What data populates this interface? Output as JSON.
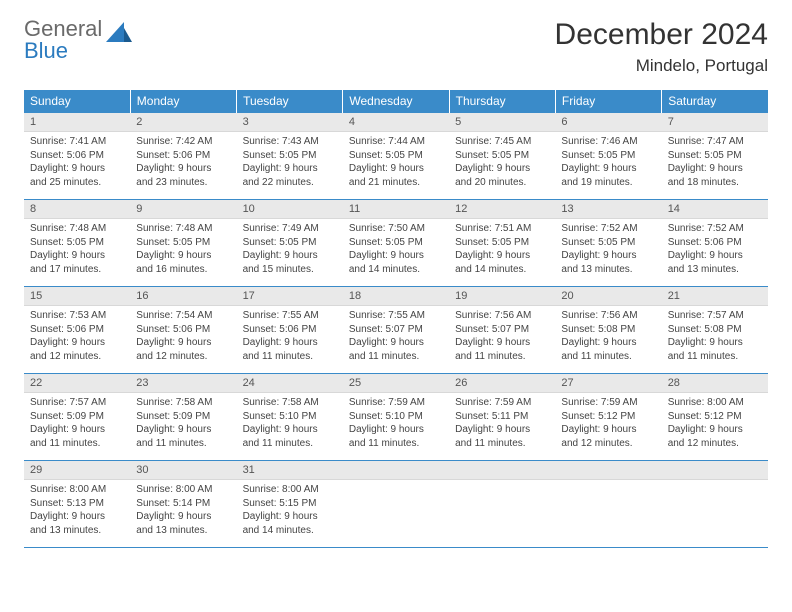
{
  "logo": {
    "line1": "General",
    "line2": "Blue"
  },
  "header": {
    "month_title": "December 2024",
    "location": "Mindelo, Portugal"
  },
  "colors": {
    "header_bg": "#3a8bc9",
    "header_text": "#ffffff",
    "daynum_bg": "#e9e9e9",
    "rule": "#3a8bc9",
    "logo_gray": "#6a6a6a",
    "logo_blue": "#2b7bbf"
  },
  "days_of_week": [
    "Sunday",
    "Monday",
    "Tuesday",
    "Wednesday",
    "Thursday",
    "Friday",
    "Saturday"
  ],
  "weeks": [
    [
      {
        "n": "1",
        "sunrise": "Sunrise: 7:41 AM",
        "sunset": "Sunset: 5:06 PM",
        "day1": "Daylight: 9 hours",
        "day2": "and 25 minutes."
      },
      {
        "n": "2",
        "sunrise": "Sunrise: 7:42 AM",
        "sunset": "Sunset: 5:06 PM",
        "day1": "Daylight: 9 hours",
        "day2": "and 23 minutes."
      },
      {
        "n": "3",
        "sunrise": "Sunrise: 7:43 AM",
        "sunset": "Sunset: 5:05 PM",
        "day1": "Daylight: 9 hours",
        "day2": "and 22 minutes."
      },
      {
        "n": "4",
        "sunrise": "Sunrise: 7:44 AM",
        "sunset": "Sunset: 5:05 PM",
        "day1": "Daylight: 9 hours",
        "day2": "and 21 minutes."
      },
      {
        "n": "5",
        "sunrise": "Sunrise: 7:45 AM",
        "sunset": "Sunset: 5:05 PM",
        "day1": "Daylight: 9 hours",
        "day2": "and 20 minutes."
      },
      {
        "n": "6",
        "sunrise": "Sunrise: 7:46 AM",
        "sunset": "Sunset: 5:05 PM",
        "day1": "Daylight: 9 hours",
        "day2": "and 19 minutes."
      },
      {
        "n": "7",
        "sunrise": "Sunrise: 7:47 AM",
        "sunset": "Sunset: 5:05 PM",
        "day1": "Daylight: 9 hours",
        "day2": "and 18 minutes."
      }
    ],
    [
      {
        "n": "8",
        "sunrise": "Sunrise: 7:48 AM",
        "sunset": "Sunset: 5:05 PM",
        "day1": "Daylight: 9 hours",
        "day2": "and 17 minutes."
      },
      {
        "n": "9",
        "sunrise": "Sunrise: 7:48 AM",
        "sunset": "Sunset: 5:05 PM",
        "day1": "Daylight: 9 hours",
        "day2": "and 16 minutes."
      },
      {
        "n": "10",
        "sunrise": "Sunrise: 7:49 AM",
        "sunset": "Sunset: 5:05 PM",
        "day1": "Daylight: 9 hours",
        "day2": "and 15 minutes."
      },
      {
        "n": "11",
        "sunrise": "Sunrise: 7:50 AM",
        "sunset": "Sunset: 5:05 PM",
        "day1": "Daylight: 9 hours",
        "day2": "and 14 minutes."
      },
      {
        "n": "12",
        "sunrise": "Sunrise: 7:51 AM",
        "sunset": "Sunset: 5:05 PM",
        "day1": "Daylight: 9 hours",
        "day2": "and 14 minutes."
      },
      {
        "n": "13",
        "sunrise": "Sunrise: 7:52 AM",
        "sunset": "Sunset: 5:05 PM",
        "day1": "Daylight: 9 hours",
        "day2": "and 13 minutes."
      },
      {
        "n": "14",
        "sunrise": "Sunrise: 7:52 AM",
        "sunset": "Sunset: 5:06 PM",
        "day1": "Daylight: 9 hours",
        "day2": "and 13 minutes."
      }
    ],
    [
      {
        "n": "15",
        "sunrise": "Sunrise: 7:53 AM",
        "sunset": "Sunset: 5:06 PM",
        "day1": "Daylight: 9 hours",
        "day2": "and 12 minutes."
      },
      {
        "n": "16",
        "sunrise": "Sunrise: 7:54 AM",
        "sunset": "Sunset: 5:06 PM",
        "day1": "Daylight: 9 hours",
        "day2": "and 12 minutes."
      },
      {
        "n": "17",
        "sunrise": "Sunrise: 7:55 AM",
        "sunset": "Sunset: 5:06 PM",
        "day1": "Daylight: 9 hours",
        "day2": "and 11 minutes."
      },
      {
        "n": "18",
        "sunrise": "Sunrise: 7:55 AM",
        "sunset": "Sunset: 5:07 PM",
        "day1": "Daylight: 9 hours",
        "day2": "and 11 minutes."
      },
      {
        "n": "19",
        "sunrise": "Sunrise: 7:56 AM",
        "sunset": "Sunset: 5:07 PM",
        "day1": "Daylight: 9 hours",
        "day2": "and 11 minutes."
      },
      {
        "n": "20",
        "sunrise": "Sunrise: 7:56 AM",
        "sunset": "Sunset: 5:08 PM",
        "day1": "Daylight: 9 hours",
        "day2": "and 11 minutes."
      },
      {
        "n": "21",
        "sunrise": "Sunrise: 7:57 AM",
        "sunset": "Sunset: 5:08 PM",
        "day1": "Daylight: 9 hours",
        "day2": "and 11 minutes."
      }
    ],
    [
      {
        "n": "22",
        "sunrise": "Sunrise: 7:57 AM",
        "sunset": "Sunset: 5:09 PM",
        "day1": "Daylight: 9 hours",
        "day2": "and 11 minutes."
      },
      {
        "n": "23",
        "sunrise": "Sunrise: 7:58 AM",
        "sunset": "Sunset: 5:09 PM",
        "day1": "Daylight: 9 hours",
        "day2": "and 11 minutes."
      },
      {
        "n": "24",
        "sunrise": "Sunrise: 7:58 AM",
        "sunset": "Sunset: 5:10 PM",
        "day1": "Daylight: 9 hours",
        "day2": "and 11 minutes."
      },
      {
        "n": "25",
        "sunrise": "Sunrise: 7:59 AM",
        "sunset": "Sunset: 5:10 PM",
        "day1": "Daylight: 9 hours",
        "day2": "and 11 minutes."
      },
      {
        "n": "26",
        "sunrise": "Sunrise: 7:59 AM",
        "sunset": "Sunset: 5:11 PM",
        "day1": "Daylight: 9 hours",
        "day2": "and 11 minutes."
      },
      {
        "n": "27",
        "sunrise": "Sunrise: 7:59 AM",
        "sunset": "Sunset: 5:12 PM",
        "day1": "Daylight: 9 hours",
        "day2": "and 12 minutes."
      },
      {
        "n": "28",
        "sunrise": "Sunrise: 8:00 AM",
        "sunset": "Sunset: 5:12 PM",
        "day1": "Daylight: 9 hours",
        "day2": "and 12 minutes."
      }
    ],
    [
      {
        "n": "29",
        "sunrise": "Sunrise: 8:00 AM",
        "sunset": "Sunset: 5:13 PM",
        "day1": "Daylight: 9 hours",
        "day2": "and 13 minutes."
      },
      {
        "n": "30",
        "sunrise": "Sunrise: 8:00 AM",
        "sunset": "Sunset: 5:14 PM",
        "day1": "Daylight: 9 hours",
        "day2": "and 13 minutes."
      },
      {
        "n": "31",
        "sunrise": "Sunrise: 8:00 AM",
        "sunset": "Sunset: 5:15 PM",
        "day1": "Daylight: 9 hours",
        "day2": "and 14 minutes."
      },
      {
        "n": "",
        "sunrise": "",
        "sunset": "",
        "day1": "",
        "day2": "",
        "empty": true
      },
      {
        "n": "",
        "sunrise": "",
        "sunset": "",
        "day1": "",
        "day2": "",
        "empty": true
      },
      {
        "n": "",
        "sunrise": "",
        "sunset": "",
        "day1": "",
        "day2": "",
        "empty": true
      },
      {
        "n": "",
        "sunrise": "",
        "sunset": "",
        "day1": "",
        "day2": "",
        "empty": true
      }
    ]
  ]
}
